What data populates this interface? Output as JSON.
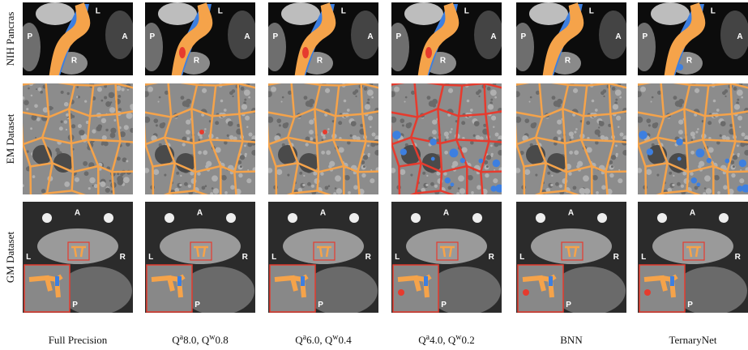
{
  "row_labels": [
    "NIH Pancras",
    "EM Dataset",
    "GM Dataset"
  ],
  "column_labels": [
    [
      {
        "text": "Full Precision"
      }
    ],
    [
      {
        "text": "Q"
      },
      {
        "sup": "a"
      },
      {
        "text": "8.0, Q"
      },
      {
        "sup": "w"
      },
      {
        "text": "0.8"
      }
    ],
    [
      {
        "text": "Q"
      },
      {
        "sup": "a"
      },
      {
        "text": "6.0, Q"
      },
      {
        "sup": "w"
      },
      {
        "text": "0.4"
      }
    ],
    [
      {
        "text": "Q"
      },
      {
        "sup": "a"
      },
      {
        "text": "4.0, Q"
      },
      {
        "sup": "w"
      },
      {
        "text": "0.2"
      }
    ],
    [
      {
        "text": "BNN"
      }
    ],
    [
      {
        "text": "TernaryNet"
      }
    ]
  ],
  "image_markers": {
    "nih": [
      "L",
      "P",
      "A",
      "R"
    ],
    "gm": [
      "A",
      "L",
      "R",
      "P"
    ]
  }
}
